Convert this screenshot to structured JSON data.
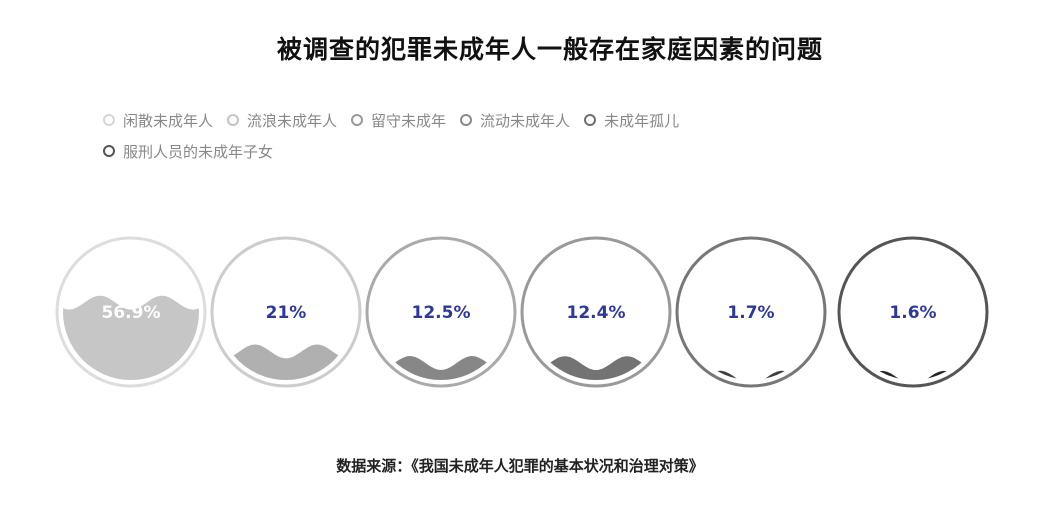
{
  "title": "被调查的犯罪未成年人一般存在家庭因素的问题",
  "legend": {
    "rows": [
      [
        {
          "label": "闲散未成年人",
          "color": "#d5d5d5"
        },
        {
          "label": "流浪未成年人",
          "color": "#c4c4c4"
        },
        {
          "label": "留守未成年",
          "color": "#9a9a9a"
        },
        {
          "label": "流动未成年人",
          "color": "#8a8a8a"
        },
        {
          "label": "未成年孤儿",
          "color": "#6e6e6e"
        }
      ],
      [
        {
          "label": "服刑人员的未成年子女",
          "color": "#555555"
        }
      ]
    ]
  },
  "chart_data": {
    "type": "liquidfill",
    "categories": [
      "闲散未成年人",
      "流浪未成年人",
      "留守未成年",
      "流动未成年人",
      "未成年孤儿",
      "服刑人员的未成年子女"
    ],
    "values": [
      56.9,
      21,
      12.5,
      12.4,
      1.7,
      1.6
    ],
    "labels": [
      "56.9%",
      "21%",
      "12.5%",
      "12.4%",
      "1.7%",
      "1.6%"
    ],
    "colors": [
      "#c6c6c6",
      "#b0b0b0",
      "#878787",
      "#737373",
      "#3e3e3e",
      "#262626"
    ],
    "border_colors": [
      "#dddddd",
      "#cccccc",
      "#aaaaaa",
      "#999999",
      "#777777",
      "#555555"
    ],
    "label_color": "#2b3a9a",
    "label_color_inside": "#ffffff"
  },
  "source": "数据来源：《我国未成年人犯罪的基本状况和治理对策》"
}
